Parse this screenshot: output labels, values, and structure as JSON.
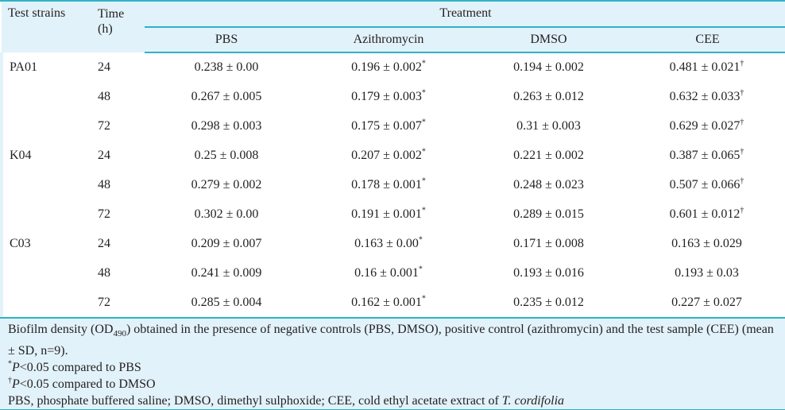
{
  "table": {
    "header": {
      "test_strains": "Test strains",
      "time_line1": "Time",
      "time_line2": "(h)",
      "treatment": "Treatment",
      "treatments": [
        "PBS",
        "Azithromycin",
        "DMSO",
        "CEE"
      ]
    },
    "rows": [
      {
        "strain": "PA01",
        "time": "24",
        "pbs": "0.238 ± 0.00",
        "azi": "0.196 ± 0.002",
        "azi_mark": "*",
        "dmso": "0.194 ± 0.002",
        "cee": "0.481 ± 0.021",
        "cee_mark": "†"
      },
      {
        "strain": "",
        "time": "48",
        "pbs": "0.267 ± 0.005",
        "azi": "0.179 ± 0.003",
        "azi_mark": "*",
        "dmso": "0.263 ± 0.012",
        "cee": "0.632 ± 0.033",
        "cee_mark": "†"
      },
      {
        "strain": "",
        "time": "72",
        "pbs": "0.298 ± 0.003",
        "azi": "0.175 ± 0.007",
        "azi_mark": "*",
        "dmso": "0.31 ± 0.003",
        "cee": "0.629 ± 0.027",
        "cee_mark": "†"
      },
      {
        "strain": "K04",
        "time": "24",
        "pbs": "0.25 ± 0.008",
        "azi": "0.207 ± 0.002",
        "azi_mark": "*",
        "dmso": "0.221 ± 0.002",
        "cee": "0.387 ± 0.065",
        "cee_mark": "†"
      },
      {
        "strain": "",
        "time": "48",
        "pbs": "0.279 ± 0.002",
        "azi": "0.178 ± 0.001",
        "azi_mark": "*",
        "dmso": "0.248 ± 0.023",
        "cee": "0.507 ± 0.066",
        "cee_mark": "†"
      },
      {
        "strain": "",
        "time": "72",
        "pbs": "0.302 ± 0.00",
        "azi": "0.191 ± 0.001",
        "azi_mark": "*",
        "dmso": "0.289 ± 0.015",
        "cee": "0.601 ± 0.012",
        "cee_mark": "†"
      },
      {
        "strain": "C03",
        "time": "24",
        "pbs": "0.209 ± 0.007",
        "azi": "0.163 ± 0.00",
        "azi_mark": "*",
        "dmso": "0.171 ± 0.008",
        "cee": "0.163 ± 0.029",
        "cee_mark": ""
      },
      {
        "strain": "",
        "time": "48",
        "pbs": "0.241 ± 0.009",
        "azi": "0.16 ± 0.001",
        "azi_mark": "*",
        "dmso": "0.193 ± 0.016",
        "cee": "0.193 ± 0.03",
        "cee_mark": ""
      },
      {
        "strain": "",
        "time": "72",
        "pbs": "0.285 ± 0.004",
        "azi": "0.162 ± 0.001",
        "azi_mark": "*",
        "dmso": "0.235 ± 0.012",
        "cee": "0.227 ± 0.027",
        "cee_mark": ""
      }
    ]
  },
  "footnotes": {
    "caption_pre": "Biofilm density (OD",
    "caption_sub": "490",
    "caption_post": ") obtained in the presence of negative controls (PBS, DMSO), positive control (azithromycin) and the test sample (CEE) (mean ± SD, n=9).",
    "note_pbs_mark": "*",
    "note_pbs_p": "P",
    "note_pbs_text": "<0.05 compared to PBS",
    "note_dmso_mark": "†",
    "note_dmso_p": "P",
    "note_dmso_text": "<0.05 compared to DMSO",
    "abbrev_text": "PBS, phosphate buffered saline; DMSO, dimethyl sulphoxide; CEE, cold ethyl acetate extract of ",
    "abbrev_italic": "T. cordifolia"
  },
  "colors": {
    "accent_teal": "#31b2c6",
    "band_blue": "#e2f2fa"
  }
}
